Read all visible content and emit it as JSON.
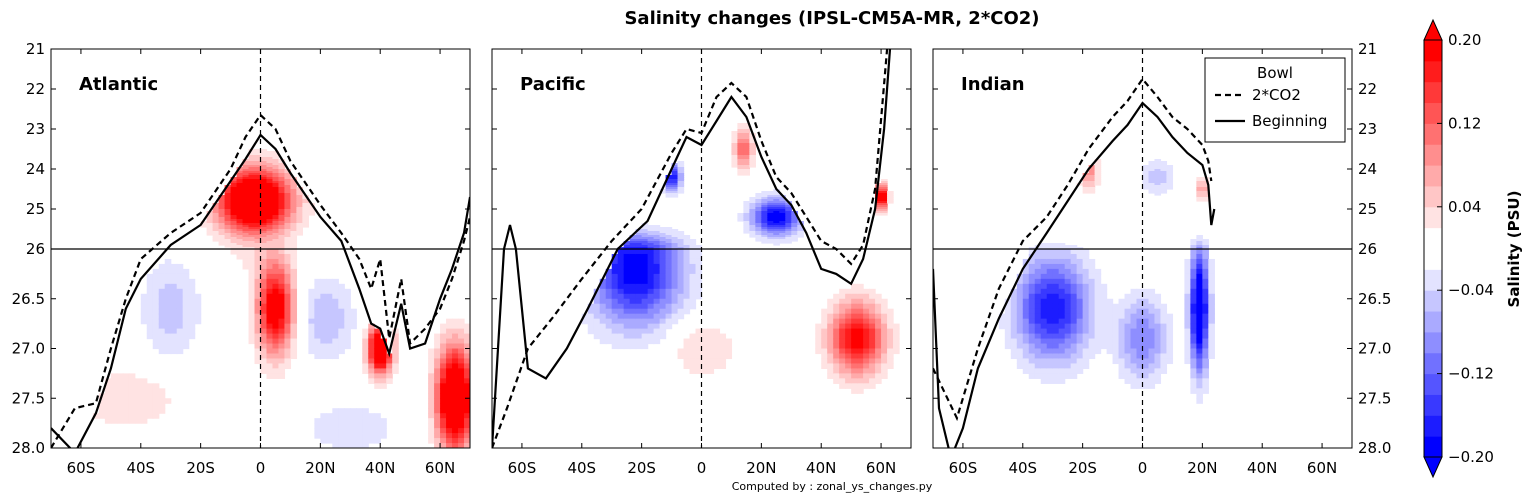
{
  "figure": {
    "title": "Salinity changes (IPSL-CM5A-MR, 2*CO2)",
    "footer": "Computed by : zonal_ys_changes.py"
  },
  "chart_data": {
    "type": "heatmap",
    "panels": [
      {
        "name": "Atlantic",
        "lat_max": 70
      },
      {
        "name": "Pacific",
        "lat_max": 65
      },
      {
        "name": "Indian",
        "lat_max": 25
      }
    ],
    "xlim": [
      -70,
      70
    ],
    "x_ticks": [
      -60,
      -40,
      -20,
      0,
      20,
      40,
      60
    ],
    "x_tick_labels": [
      "60S",
      "40S",
      "20S",
      "0",
      "20N",
      "40N",
      "60N"
    ],
    "y_ticks": [
      21,
      22,
      23,
      24,
      25,
      26,
      26.5,
      27.0,
      27.5,
      28.0
    ],
    "y_tick_labels": [
      "21",
      "22",
      "23",
      "24",
      "25",
      "26",
      "26.5",
      "27.0",
      "27.5",
      "28.0"
    ],
    "y_split": 26,
    "colorbar": {
      "label": "Salinity (PSU)",
      "ticks": [
        0.2,
        0.12,
        0.04,
        -0.04,
        -0.12,
        -0.2
      ],
      "tick_labels": [
        "0.20",
        "0.12",
        "0.04",
        "−0.04",
        "−0.12",
        "−0.20"
      ],
      "vmin": -0.2,
      "vmax": 0.2,
      "levels": 20
    },
    "legend": {
      "title": "Bowl",
      "placement": "top-right",
      "entries": [
        {
          "label": "2*CO2",
          "style": "dashed"
        },
        {
          "label": "Beginning",
          "style": "solid"
        }
      ]
    },
    "anomalies": [
      [
        {
          "lat": -2,
          "rho": 24.8,
          "sx": 12,
          "sy": 0.8,
          "amp": 0.3
        },
        {
          "lat": 5,
          "rho": 26.6,
          "sx": 6,
          "sy": 0.45,
          "amp": 0.22
        },
        {
          "lat": -30,
          "rho": 26.6,
          "sx": 10,
          "sy": 0.5,
          "amp": -0.05
        },
        {
          "lat": 22,
          "rho": 26.7,
          "sx": 9,
          "sy": 0.4,
          "amp": -0.06
        },
        {
          "lat": 40,
          "rho": 27.0,
          "sx": 4,
          "sy": 0.25,
          "amp": 0.28
        },
        {
          "lat": 65,
          "rho": 27.5,
          "sx": 6,
          "sy": 0.5,
          "amp": 0.3
        },
        {
          "lat": -45,
          "rho": 27.5,
          "sx": 18,
          "sy": 0.3,
          "amp": 0.04
        },
        {
          "lat": 30,
          "rho": 27.8,
          "sx": 15,
          "sy": 0.25,
          "amp": -0.04
        }
      ],
      [
        {
          "lat": -22,
          "rho": 26.2,
          "sx": 15,
          "sy": 0.55,
          "amp": -0.2
        },
        {
          "lat": 25,
          "rho": 25.2,
          "sx": 8,
          "sy": 0.45,
          "amp": -0.2
        },
        {
          "lat": 52,
          "rho": 26.9,
          "sx": 9,
          "sy": 0.35,
          "amp": 0.2
        },
        {
          "lat": 14,
          "rho": 23.5,
          "sx": 3,
          "sy": 0.5,
          "amp": 0.12
        },
        {
          "lat": 0,
          "rho": 27.0,
          "sx": 12,
          "sy": 0.3,
          "amp": 0.04
        },
        {
          "lat": -10,
          "rho": 24.2,
          "sx": 3,
          "sy": 0.35,
          "amp": -0.18
        },
        {
          "lat": 60,
          "rho": 24.7,
          "sx": 2,
          "sy": 0.3,
          "amp": 0.25
        }
      ],
      [
        {
          "lat": -30,
          "rho": 26.6,
          "sx": 12,
          "sy": 0.5,
          "amp": -0.18
        },
        {
          "lat": 0,
          "rho": 26.9,
          "sx": 8,
          "sy": 0.4,
          "amp": -0.1
        },
        {
          "lat": 19,
          "rho": 26.6,
          "sx": 3,
          "sy": 0.6,
          "amp": -0.25
        },
        {
          "lat": -18,
          "rho": 24.0,
          "sx": 3,
          "sy": 0.5,
          "amp": 0.1
        },
        {
          "lat": 5,
          "rho": 24.2,
          "sx": 6,
          "sy": 0.45,
          "amp": -0.05
        },
        {
          "lat": 20,
          "rho": 24.5,
          "sx": 2,
          "sy": 0.3,
          "amp": 0.08
        }
      ]
    ],
    "bowl_beginning": [
      [
        {
          "lat": -70,
          "rho": 27.8
        },
        {
          "lat": -62,
          "rho": 28.05
        },
        {
          "lat": -55,
          "rho": 27.65
        },
        {
          "lat": -50,
          "rho": 27.2
        },
        {
          "lat": -45,
          "rho": 26.6
        },
        {
          "lat": -40,
          "rho": 26.3
        },
        {
          "lat": -30,
          "rho": 25.9
        },
        {
          "lat": -20,
          "rho": 25.4
        },
        {
          "lat": -10,
          "rho": 24.3
        },
        {
          "lat": -5,
          "rho": 23.75
        },
        {
          "lat": 0,
          "rho": 23.15
        },
        {
          "lat": 5,
          "rho": 23.5
        },
        {
          "lat": 10,
          "rho": 24.1
        },
        {
          "lat": 20,
          "rho": 25.2
        },
        {
          "lat": 27,
          "rho": 25.8
        },
        {
          "lat": 33,
          "rho": 26.4
        },
        {
          "lat": 37,
          "rho": 26.75
        },
        {
          "lat": 40,
          "rho": 26.8
        },
        {
          "lat": 43,
          "rho": 27.05
        },
        {
          "lat": 47,
          "rho": 26.55
        },
        {
          "lat": 50,
          "rho": 27.0
        },
        {
          "lat": 55,
          "rho": 26.95
        },
        {
          "lat": 60,
          "rho": 26.5
        },
        {
          "lat": 64,
          "rho": 26.2
        },
        {
          "lat": 68,
          "rho": 25.6
        },
        {
          "lat": 70,
          "rho": 24.7
        }
      ],
      [
        {
          "lat": -70,
          "rho": 28.0
        },
        {
          "lat": -66,
          "rho": 26.0
        },
        {
          "lat": -64,
          "rho": 25.4
        },
        {
          "lat": -62,
          "rho": 26.0
        },
        {
          "lat": -58,
          "rho": 27.2
        },
        {
          "lat": -52,
          "rho": 27.3
        },
        {
          "lat": -45,
          "rho": 27.0
        },
        {
          "lat": -38,
          "rho": 26.6
        },
        {
          "lat": -28,
          "rho": 26.0
        },
        {
          "lat": -18,
          "rho": 25.3
        },
        {
          "lat": -10,
          "rho": 24.0
        },
        {
          "lat": -5,
          "rho": 23.2
        },
        {
          "lat": 0,
          "rho": 23.4
        },
        {
          "lat": 5,
          "rho": 22.8
        },
        {
          "lat": 10,
          "rho": 22.2
        },
        {
          "lat": 15,
          "rho": 22.7
        },
        {
          "lat": 20,
          "rho": 23.7
        },
        {
          "lat": 25,
          "rho": 24.5
        },
        {
          "lat": 30,
          "rho": 24.9
        },
        {
          "lat": 35,
          "rho": 25.6
        },
        {
          "lat": 40,
          "rho": 26.2
        },
        {
          "lat": 45,
          "rho": 26.25
        },
        {
          "lat": 50,
          "rho": 26.35
        },
        {
          "lat": 54,
          "rho": 26.1
        },
        {
          "lat": 58,
          "rho": 25.0
        },
        {
          "lat": 61,
          "rho": 23.0
        },
        {
          "lat": 63,
          "rho": 21.0
        }
      ],
      [
        {
          "lat": -70,
          "rho": 26.2
        },
        {
          "lat": -68,
          "rho": 27.6
        },
        {
          "lat": -64,
          "rho": 28.1
        },
        {
          "lat": -60,
          "rho": 27.8
        },
        {
          "lat": -55,
          "rho": 27.2
        },
        {
          "lat": -48,
          "rho": 26.7
        },
        {
          "lat": -40,
          "rho": 26.2
        },
        {
          "lat": -32,
          "rho": 25.6
        },
        {
          "lat": -25,
          "rho": 24.8
        },
        {
          "lat": -18,
          "rho": 24.0
        },
        {
          "lat": -10,
          "rho": 23.3
        },
        {
          "lat": -5,
          "rho": 22.9
        },
        {
          "lat": 0,
          "rho": 22.35
        },
        {
          "lat": 5,
          "rho": 22.7
        },
        {
          "lat": 10,
          "rho": 23.2
        },
        {
          "lat": 15,
          "rho": 23.6
        },
        {
          "lat": 20,
          "rho": 23.9
        },
        {
          "lat": 22,
          "rho": 24.4
        },
        {
          "lat": 23,
          "rho": 25.4
        },
        {
          "lat": 24,
          "rho": 25.0
        }
      ]
    ],
    "bowl_2xco2": [
      [
        {
          "lat": -70,
          "rho": 28.0
        },
        {
          "lat": -62,
          "rho": 27.6
        },
        {
          "lat": -55,
          "rho": 27.55
        },
        {
          "lat": -50,
          "rho": 27.0
        },
        {
          "lat": -45,
          "rho": 26.5
        },
        {
          "lat": -40,
          "rho": 26.1
        },
        {
          "lat": -30,
          "rho": 25.6
        },
        {
          "lat": -20,
          "rho": 25.1
        },
        {
          "lat": -10,
          "rho": 24.0
        },
        {
          "lat": -5,
          "rho": 23.2
        },
        {
          "lat": 0,
          "rho": 22.65
        },
        {
          "lat": 5,
          "rho": 23.0
        },
        {
          "lat": 10,
          "rho": 23.8
        },
        {
          "lat": 20,
          "rho": 24.9
        },
        {
          "lat": 27,
          "rho": 25.6
        },
        {
          "lat": 33,
          "rho": 26.1
        },
        {
          "lat": 37,
          "rho": 26.4
        },
        {
          "lat": 40,
          "rho": 26.1
        },
        {
          "lat": 43,
          "rho": 26.9
        },
        {
          "lat": 47,
          "rho": 26.3
        },
        {
          "lat": 50,
          "rho": 26.95
        },
        {
          "lat": 55,
          "rho": 26.8
        },
        {
          "lat": 60,
          "rho": 26.6
        },
        {
          "lat": 64,
          "rho": 26.3
        },
        {
          "lat": 68,
          "rho": 25.8
        },
        {
          "lat": 70,
          "rho": 25.2
        }
      ],
      [
        {
          "lat": -70,
          "rho": 28.0
        },
        {
          "lat": -65,
          "rho": 27.6
        },
        {
          "lat": -58,
          "rho": 27.0
        },
        {
          "lat": -50,
          "rho": 26.7
        },
        {
          "lat": -40,
          "rho": 26.3
        },
        {
          "lat": -30,
          "rho": 25.8
        },
        {
          "lat": -20,
          "rho": 25.0
        },
        {
          "lat": -10,
          "rho": 23.6
        },
        {
          "lat": -5,
          "rho": 23.0
        },
        {
          "lat": 0,
          "rho": 23.1
        },
        {
          "lat": 5,
          "rho": 22.2
        },
        {
          "lat": 10,
          "rho": 21.85
        },
        {
          "lat": 15,
          "rho": 22.2
        },
        {
          "lat": 20,
          "rho": 23.3
        },
        {
          "lat": 25,
          "rho": 24.2
        },
        {
          "lat": 30,
          "rho": 24.6
        },
        {
          "lat": 35,
          "rho": 25.2
        },
        {
          "lat": 40,
          "rho": 25.8
        },
        {
          "lat": 45,
          "rho": 26.0
        },
        {
          "lat": 50,
          "rho": 26.15
        },
        {
          "lat": 54,
          "rho": 25.9
        },
        {
          "lat": 58,
          "rho": 24.5
        },
        {
          "lat": 62,
          "rho": 21.0
        }
      ],
      [
        {
          "lat": -70,
          "rho": 27.2
        },
        {
          "lat": -62,
          "rho": 27.7
        },
        {
          "lat": -55,
          "rho": 27.0
        },
        {
          "lat": -48,
          "rho": 26.4
        },
        {
          "lat": -40,
          "rho": 25.8
        },
        {
          "lat": -32,
          "rho": 25.2
        },
        {
          "lat": -25,
          "rho": 24.4
        },
        {
          "lat": -18,
          "rho": 23.5
        },
        {
          "lat": -10,
          "rho": 22.7
        },
        {
          "lat": -5,
          "rho": 22.3
        },
        {
          "lat": 0,
          "rho": 21.75
        },
        {
          "lat": 5,
          "rho": 22.2
        },
        {
          "lat": 10,
          "rho": 22.7
        },
        {
          "lat": 15,
          "rho": 23.0
        },
        {
          "lat": 20,
          "rho": 23.4
        },
        {
          "lat": 22,
          "rho": 23.8
        },
        {
          "lat": 23,
          "rho": 24.3
        }
      ]
    ],
    "colors": {
      "frame": "#000000",
      "line": "#000000",
      "background": "#ffffff"
    }
  }
}
